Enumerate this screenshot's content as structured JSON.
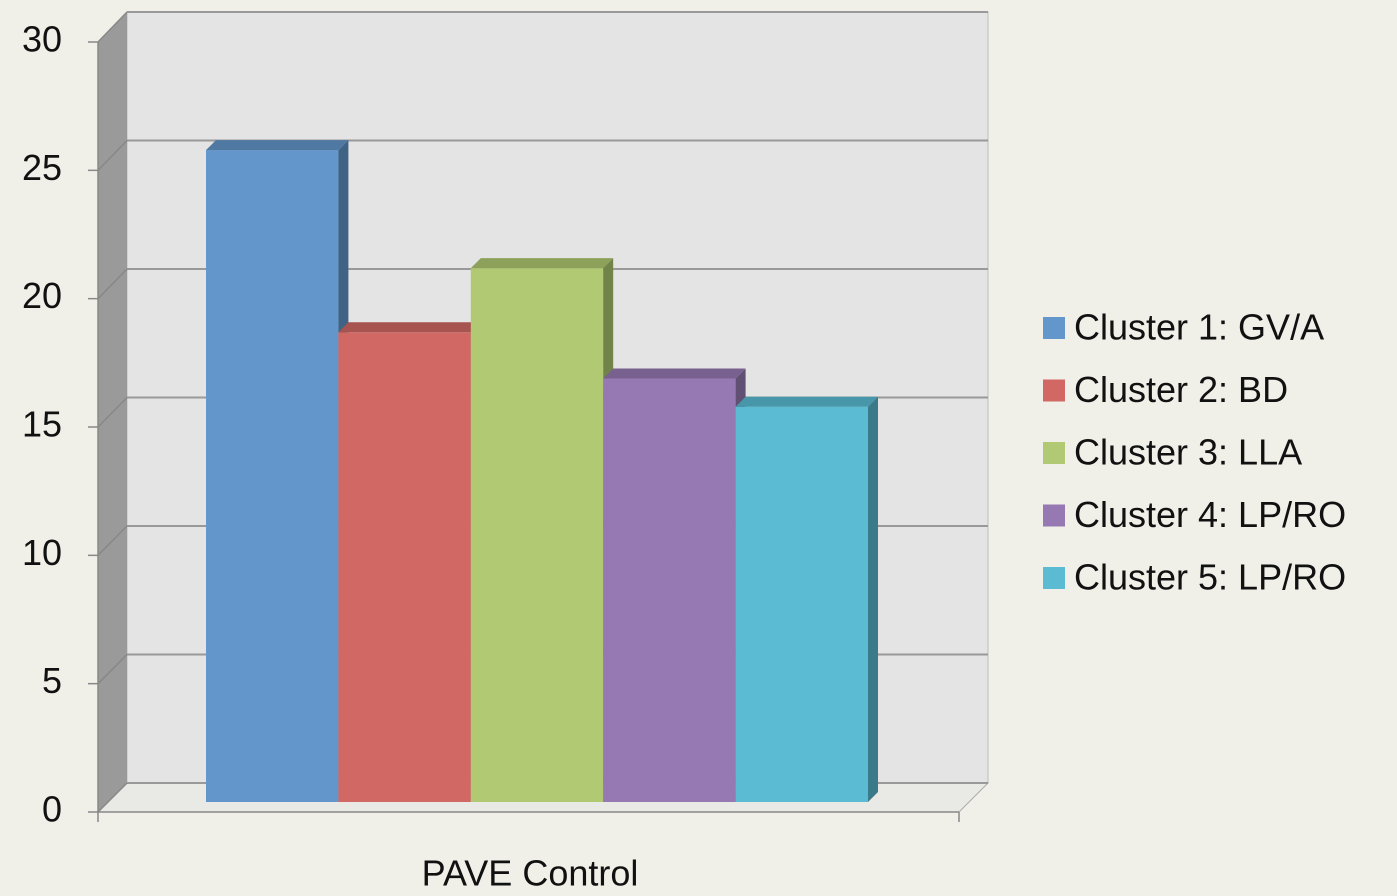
{
  "chart_data": {
    "type": "bar",
    "categories": [
      "PAVE Control"
    ],
    "series": [
      {
        "name": "Cluster 1: GV/A",
        "color": "#6396cb",
        "values": [
          25.4
        ]
      },
      {
        "name": "Cluster 2: BD",
        "color": "#d16863",
        "values": [
          18.3
        ]
      },
      {
        "name": "Cluster 3: LLA",
        "color": "#b0c972",
        "values": [
          20.8
        ]
      },
      {
        "name": "Cluster 4: LP/RO",
        "color": "#9679b3",
        "values": [
          16.5
        ]
      },
      {
        "name": "Cluster 5: LP/RO",
        "color": "#5abbd3",
        "values": [
          15.4
        ]
      }
    ],
    "ylim": [
      0,
      30
    ],
    "yticks": [
      0,
      5,
      10,
      15,
      20,
      25,
      30
    ],
    "grid": true,
    "legend": "right"
  }
}
